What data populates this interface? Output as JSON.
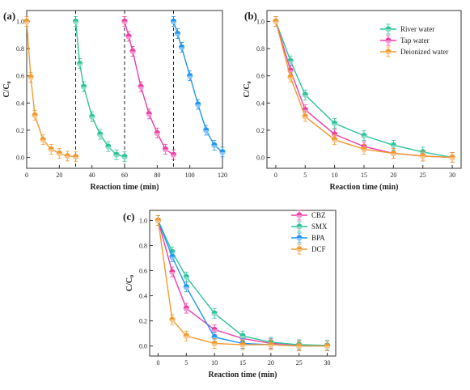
{
  "chart_data": [
    {
      "type": "line",
      "panel_label": "(a)",
      "xlabel": "Reaction time (min)",
      "ylabel": "C/C₀",
      "xlim": [
        0,
        120
      ],
      "ylim": [
        -0.08,
        1.08
      ],
      "xticks": [
        0,
        20,
        40,
        60,
        80,
        100,
        120
      ],
      "yticks": [
        0.0,
        0.2,
        0.4,
        0.6,
        0.8,
        1.0
      ],
      "ytick_labels": [
        "0.0",
        "0.2",
        "0.4",
        "0.6",
        "0.8",
        "1.0"
      ],
      "dividers_x": [
        30,
        60,
        90
      ],
      "colors": [
        "#f39a2e",
        "#2bc49a",
        "#ee3fa9",
        "#2196f3"
      ],
      "series": [
        {
          "x": [
            0,
            2.5,
            5,
            10,
            15,
            20,
            25,
            30
          ],
          "y": [
            1.0,
            0.59,
            0.31,
            0.13,
            0.06,
            0.03,
            0.01,
            0.005
          ]
        },
        {
          "x": [
            30,
            32.5,
            35,
            40,
            45,
            50,
            55,
            60
          ],
          "y": [
            1.0,
            0.69,
            0.52,
            0.3,
            0.17,
            0.08,
            0.02,
            0.005
          ]
        },
        {
          "x": [
            60,
            62.5,
            65,
            70,
            75,
            80,
            85,
            90
          ],
          "y": [
            1.0,
            0.89,
            0.78,
            0.52,
            0.32,
            0.18,
            0.06,
            0.02
          ]
        },
        {
          "x": [
            90,
            92.5,
            95,
            100,
            105,
            110,
            115,
            120
          ],
          "y": [
            1.0,
            0.91,
            0.81,
            0.6,
            0.39,
            0.2,
            0.09,
            0.04
          ]
        }
      ]
    },
    {
      "type": "line",
      "panel_label": "(b)",
      "xlabel": "Reaction time (min)",
      "ylabel": "C/C₀",
      "xlim": [
        -1.5,
        31.5
      ],
      "ylim": [
        -0.08,
        1.08
      ],
      "xticks": [
        0,
        5,
        10,
        15,
        20,
        25,
        30
      ],
      "yticks": [
        0.0,
        0.2,
        0.4,
        0.6,
        0.8,
        1.0
      ],
      "ytick_labels": [
        "0.0",
        "0.2",
        "0.4",
        "0.6",
        "0.8",
        "1.0"
      ],
      "series": [
        {
          "name": "River water",
          "color": "#2bc49a",
          "x": [
            0,
            2.5,
            5,
            10,
            15,
            20,
            25,
            30
          ],
          "y": [
            1.0,
            0.71,
            0.46,
            0.25,
            0.16,
            0.09,
            0.04,
            0.0
          ]
        },
        {
          "name": "Tap water",
          "color": "#ee3fa9",
          "x": [
            0,
            2.5,
            5,
            10,
            15,
            20,
            25,
            30
          ],
          "y": [
            1.0,
            0.64,
            0.35,
            0.17,
            0.08,
            0.03,
            0.01,
            0.0
          ]
        },
        {
          "name": "Deionized water",
          "color": "#f39a2e",
          "x": [
            0,
            2.5,
            5,
            10,
            15,
            20,
            25,
            30
          ],
          "y": [
            1.0,
            0.59,
            0.3,
            0.13,
            0.06,
            0.03,
            0.01,
            0.0
          ]
        }
      ]
    },
    {
      "type": "line",
      "panel_label": "(c)",
      "xlabel": "Reaction time (min)",
      "ylabel": "C/C₀",
      "xlim": [
        -1.5,
        31.5
      ],
      "ylim": [
        -0.08,
        1.08
      ],
      "xticks": [
        0,
        5,
        10,
        15,
        20,
        25,
        30
      ],
      "yticks": [
        0.0,
        0.2,
        0.4,
        0.6,
        0.8,
        1.0
      ],
      "ytick_labels": [
        "0.0",
        "0.2",
        "0.4",
        "0.6",
        "0.8",
        "1.0"
      ],
      "series": [
        {
          "name": "CBZ",
          "color": "#ee3fa9",
          "x": [
            0,
            2.5,
            5,
            10,
            15,
            20,
            25,
            30
          ],
          "y": [
            1.0,
            0.59,
            0.3,
            0.13,
            0.06,
            0.02,
            0.01,
            0.0
          ]
        },
        {
          "name": "SMX",
          "color": "#2bc49a",
          "x": [
            0,
            2.5,
            5,
            10,
            15,
            20,
            25,
            30
          ],
          "y": [
            1.0,
            0.75,
            0.55,
            0.26,
            0.08,
            0.03,
            0.01,
            0.005
          ]
        },
        {
          "name": "BPA",
          "color": "#2196f3",
          "x": [
            0,
            2.5,
            5,
            10,
            15,
            20,
            25,
            30
          ],
          "y": [
            1.0,
            0.71,
            0.47,
            0.07,
            0.02,
            0.01,
            0.0,
            0.0
          ]
        },
        {
          "name": "DCF",
          "color": "#f39a2e",
          "x": [
            0,
            2.5,
            5,
            10,
            15,
            20,
            25,
            30
          ],
          "y": [
            1.0,
            0.21,
            0.08,
            0.02,
            0.01,
            0.01,
            0.0,
            0.0
          ]
        }
      ]
    }
  ]
}
